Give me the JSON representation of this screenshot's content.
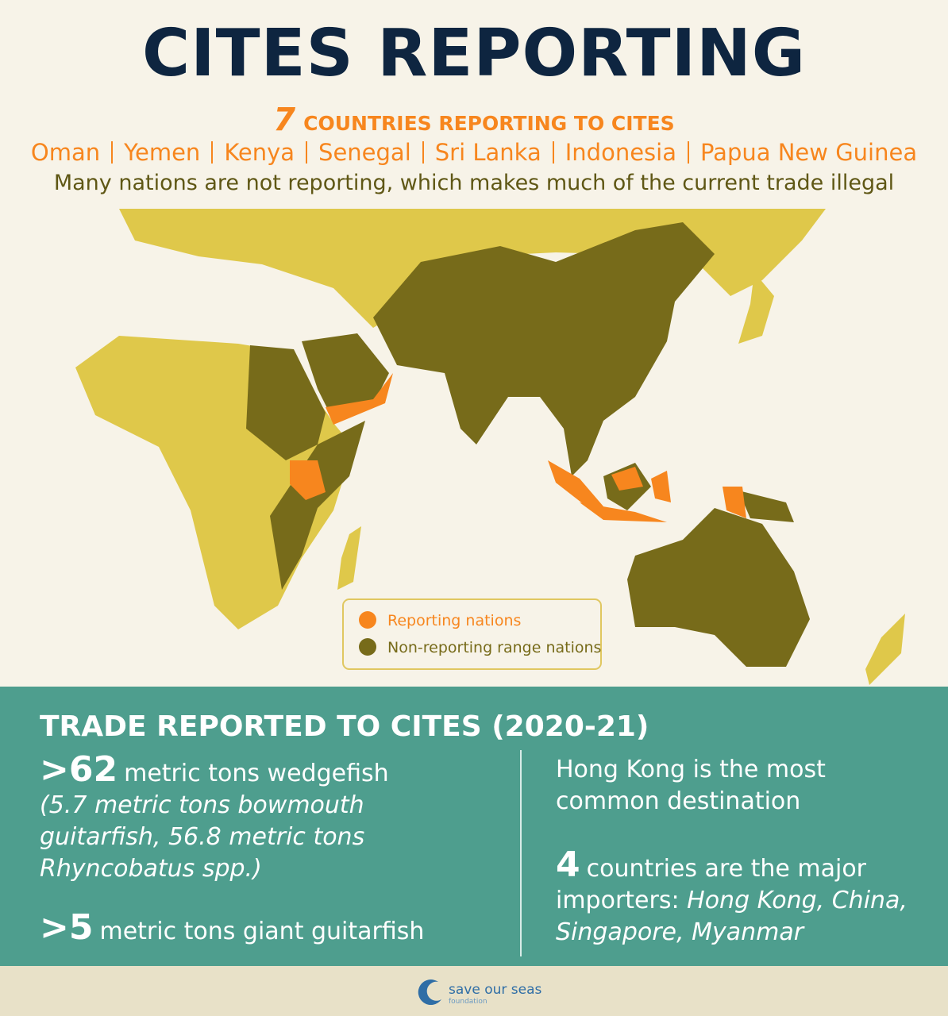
{
  "header": {
    "title": "CITES REPORTING",
    "count": "7",
    "subtitle": "COUNTRIES REPORTING TO CITES",
    "countries": [
      "Oman",
      "Yemen",
      "Kenya",
      "Senegal",
      "Sri Lanka",
      "Indonesia",
      "Papua New Guinea"
    ],
    "note": "Many nations are not reporting, which makes much of the current trade illegal"
  },
  "map": {
    "legend": [
      {
        "label": "Reporting nations",
        "color": "#f7861e"
      },
      {
        "label": "Non-reporting range nations",
        "color": "#776b1a"
      }
    ]
  },
  "trade": {
    "title": "TRADE REPORTED TO CITES (2020-21)",
    "left": [
      {
        "figure": ">62",
        "text": "metric tons wedgefish",
        "detail": "(5.7 metric tons bowmouth guitarfish, 56.8 metric tons Rhyncobatus spp.)"
      },
      {
        "figure": ">5",
        "text": "metric tons giant guitarfish"
      }
    ],
    "right": [
      {
        "text": "Hong Kong is the most common destination"
      },
      {
        "figure": "4",
        "text": "countries are the major importers:",
        "detail": "Hong Kong, China, Singapore, Myanmar"
      }
    ]
  },
  "footer": {
    "logo": "save our seas",
    "sub": "foundation"
  }
}
